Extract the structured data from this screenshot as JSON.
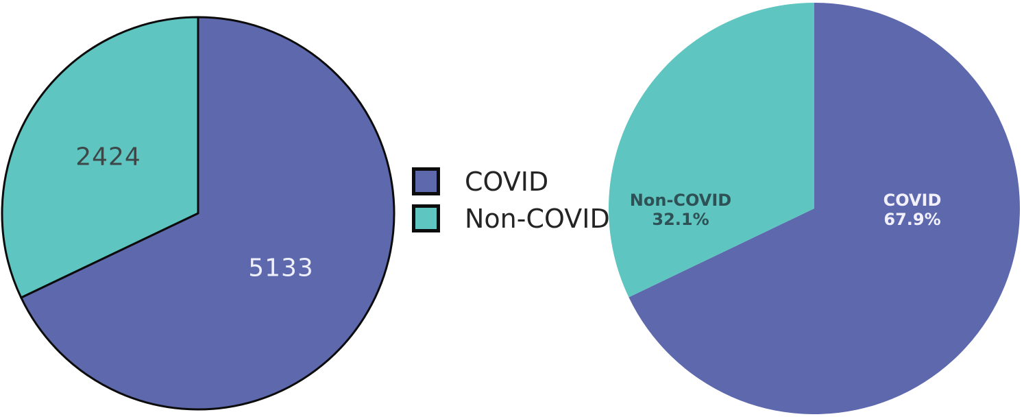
{
  "figure": {
    "description": "Two pie charts comparing COVID and Non-COVID cases, with a shared legend between them",
    "background": "#ffffff"
  },
  "colors": {
    "covid": "#5d68ad",
    "noncovid": "#5fc5c0",
    "outline": "#0c0c0c",
    "count_dark_text": "#3d4747",
    "count_light_text": "#eef0fb",
    "pct_dark_text": "#2e5156",
    "pct_light_text": "#f2f1fb",
    "legend_text": "#242424"
  },
  "chart_data": [
    {
      "type": "pie",
      "position": "left",
      "categories": [
        "COVID",
        "Non-COVID"
      ],
      "values": [
        5133,
        2424
      ],
      "value_labels": [
        "5133",
        "2424"
      ],
      "colors": [
        "#5d68ad",
        "#5fc5c0"
      ],
      "start_angle": "12 o'clock",
      "direction": "clockwise",
      "wedge_outline": true,
      "outline_color": "#0c0c0c",
      "label_colors": [
        "white",
        "dark"
      ]
    },
    {
      "type": "pie",
      "position": "right",
      "categories": [
        "COVID",
        "Non-COVID"
      ],
      "values": [
        67.9,
        32.1
      ],
      "percent_labels": [
        "67.9%",
        "32.1%"
      ],
      "colors": [
        "#5d68ad",
        "#5fc5c0"
      ],
      "start_angle": "12 o'clock",
      "direction": "clockwise",
      "wedge_outline": false,
      "label_colors": [
        "white",
        "dark"
      ]
    }
  ],
  "legend": {
    "items": [
      {
        "label": "COVID",
        "color": "#5d68ad"
      },
      {
        "label": "Non-COVID",
        "color": "#5fc5c0"
      }
    ]
  }
}
